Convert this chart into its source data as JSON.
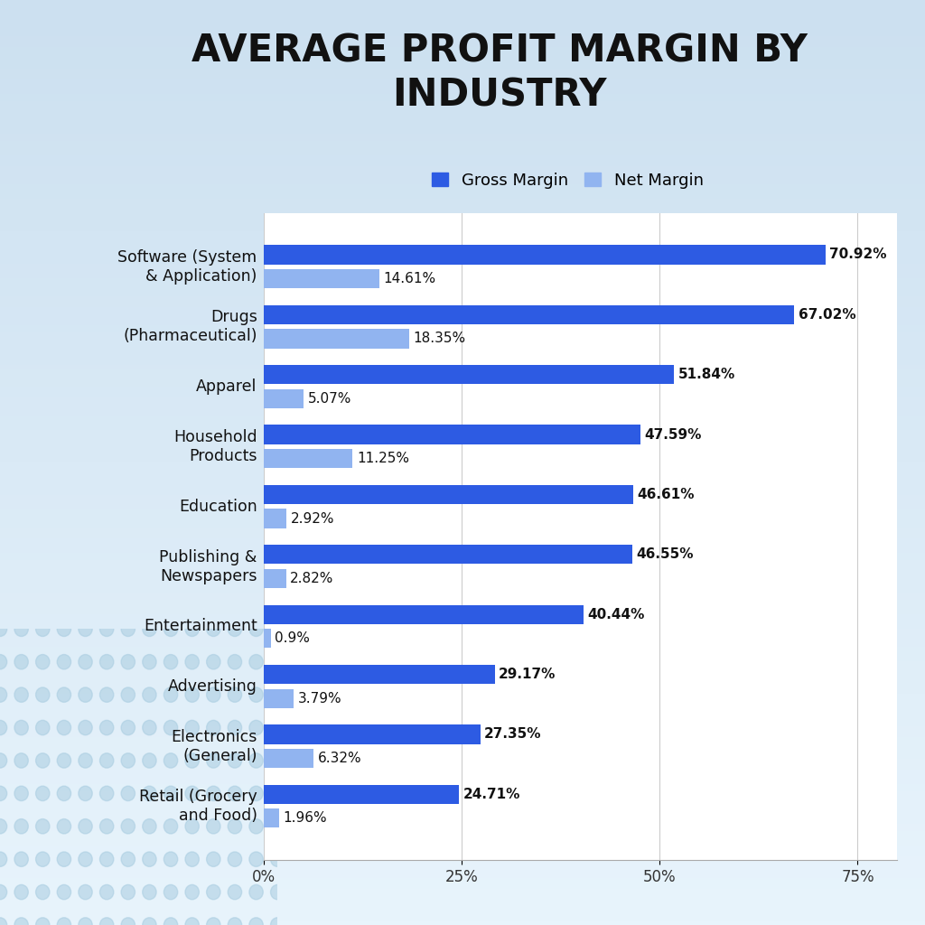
{
  "title": "AVERAGE PROFIT MARGIN BY\nINDUSTRY",
  "categories": [
    "Software (System\n& Application)",
    "Drugs\n(Pharmaceutical)",
    "Apparel",
    "Household\nProducts",
    "Education",
    "Publishing &\nNewspapers",
    "Entertainment",
    "Advertising",
    "Electronics\n(General)",
    "Retail (Grocery\nand Food)"
  ],
  "gross_margin": [
    70.92,
    67.02,
    51.84,
    47.59,
    46.61,
    46.55,
    40.44,
    29.17,
    27.35,
    24.71
  ],
  "net_margin": [
    14.61,
    18.35,
    5.07,
    11.25,
    2.92,
    2.82,
    0.9,
    3.79,
    6.32,
    1.96
  ],
  "gross_color": "#2D5BE3",
  "net_color": "#91B4F0",
  "title_fontsize": 30,
  "label_fontsize": 12.5,
  "tick_fontsize": 12,
  "legend_fontsize": 13,
  "bar_height": 0.32,
  "bar_gap": 0.08,
  "xlim": [
    0,
    80
  ],
  "xticks": [
    0,
    25,
    50,
    75
  ],
  "xticklabels": [
    "0%",
    "25%",
    "50%",
    "75%"
  ],
  "value_label_fontsize": 11,
  "bg_top": "#ddeeff",
  "bg_bottom": "#c0d8ee",
  "dot_color": "#a8cce0"
}
